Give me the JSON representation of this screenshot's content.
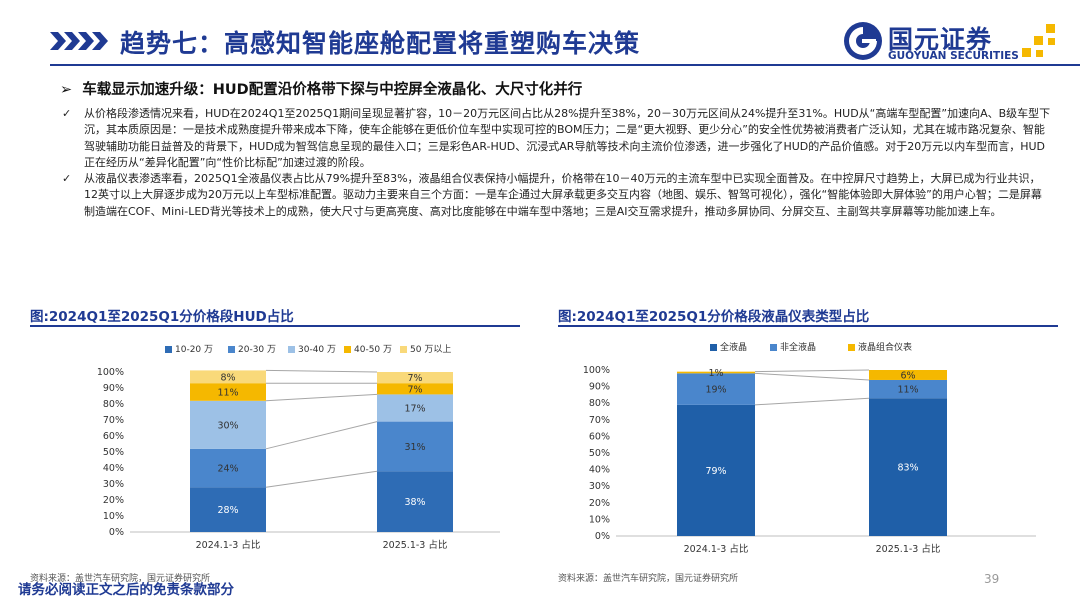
{
  "header": {
    "title": "趋势七：高感知智能座舱配置将重塑购车决策",
    "logo_cn": "国元证券",
    "logo_en": "GUOYUAN SECURITIES",
    "accent_color": "#1f3a93"
  },
  "subheading": {
    "marker": "➢",
    "text": "车载显示加速升级：HUD配置沿价格带下探与中控屏全液晶化、大尺寸化并行"
  },
  "paragraphs": [
    {
      "check": "✓",
      "text": "从价格段渗透情况来看，HUD在2024Q1至2025Q1期间呈现显著扩容，10－20万元区间占比从28%提升至38%，20－30万元区间从24%提升至31%。HUD从“高端车型配置”加速向A、B级车型下沉，其本质原因是：一是技术成熟度提升带来成本下降，使车企能够在更低价位车型中实现可控的BOM压力；二是“更大视野、更少分心”的安全性优势被消费者广泛认知，尤其在城市路况复杂、智能驾驶辅助功能日益普及的背景下，HUD成为智驾信息呈现的最佳入口；三是彩色AR-HUD、沉浸式AR导航等技术向主流价位渗透，进一步强化了HUD的产品价值感。对于20万元以内车型而言，HUD正在经历从“差异化配置”向“性价比标配”加速过渡的阶段。"
    },
    {
      "check": "✓",
      "text": "从液晶仪表渗透率看，2025Q1全液晶仪表占比从79%提升至83%，液晶组合仪表保持小幅提升，价格带在10－40万元的主流车型中已实现全面普及。在中控屏尺寸趋势上，大屏已成为行业共识，12英寸以上大屏逐步成为20万元以上车型标准配置。驱动力主要来自三个方面：一是车企通过大屏承载更多交互内容（地图、娱乐、智驾可视化），强化“智能体验即大屏体验”的用户心智；二是屏幕制造端在COF、Mini-LED背光等技术上的成熟，使大尺寸与更高亮度、高对比度能够在中端车型中落地；三是AI交互需求提升，推动多屏协同、分屏交互、主副驾共享屏幕等功能加速上车。"
    }
  ],
  "chart_data": [
    {
      "type": "bar",
      "stacked": true,
      "title": "图:2024Q1至2025Q1分价格段HUD占比",
      "categories": [
        "2024.1-3 占比",
        "2025.1-3 占比"
      ],
      "series": [
        {
          "name": "10-20 万",
          "color": "#2e6cb5",
          "values": [
            28,
            38
          ]
        },
        {
          "name": "20-30 万",
          "color": "#4a86cc",
          "values": [
            24,
            31
          ]
        },
        {
          "name": "30-40 万",
          "color": "#9dc1e6",
          "values": [
            30,
            17
          ]
        },
        {
          "name": "40-50 万",
          "color": "#f5b800",
          "values": [
            11,
            7
          ]
        },
        {
          "name": "50 万以上",
          "color": "#f9d97a",
          "values": [
            8,
            7
          ]
        }
      ],
      "yticks": [
        "0%",
        "10%",
        "20%",
        "30%",
        "40%",
        "50%",
        "60%",
        "70%",
        "80%",
        "90%",
        "100%"
      ],
      "ylim": [
        0,
        100
      ],
      "legend": "top",
      "source": "资料来源：盖世汽车研究院，国元证券研究所"
    },
    {
      "type": "bar",
      "stacked": true,
      "title": "图:2024Q1至2025Q1分价格段液晶仪表类型占比",
      "categories": [
        "2024.1-3 占比",
        "2025.1-3 占比"
      ],
      "series": [
        {
          "name": "全液晶",
          "color": "#1f5fa8",
          "values": [
            79,
            83
          ]
        },
        {
          "name": "非全液晶",
          "color": "#4a86cc",
          "values": [
            19,
            11
          ]
        },
        {
          "name": "液晶组合仪表",
          "color": "#f5b800",
          "values": [
            1,
            6
          ]
        }
      ],
      "yticks": [
        "0%",
        "10%",
        "20%",
        "30%",
        "40%",
        "50%",
        "60%",
        "70%",
        "80%",
        "90%",
        "100%"
      ],
      "ylim": [
        0,
        100
      ],
      "legend": "top",
      "source": "资料来源：盖世汽车研究院，国元证券研究所"
    }
  ],
  "footer": {
    "page_number": "39",
    "disclaimer": "请务必阅读正文之后的免责条款部分"
  }
}
